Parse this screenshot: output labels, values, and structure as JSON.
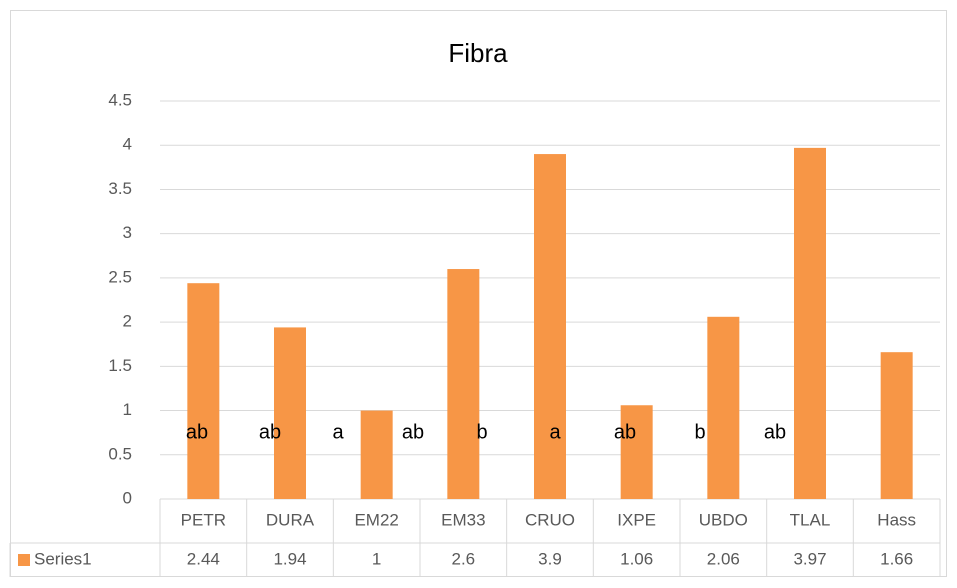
{
  "chart_data": {
    "type": "bar",
    "title": "Fibra",
    "categories": [
      "PETR",
      "DURA",
      "EM22",
      "EM33",
      "CRUO",
      "IXPE",
      "UBDO",
      "TLAL",
      "Hass"
    ],
    "series": [
      {
        "name": "Series1",
        "color": "#f79646",
        "values": [
          2.44,
          1.94,
          1,
          2.6,
          3.9,
          1.06,
          2.06,
          3.97,
          1.66
        ]
      }
    ],
    "ylim": [
      0,
      4.5
    ],
    "yticks": [
      0,
      0.5,
      1,
      1.5,
      2,
      2.5,
      3,
      3.5,
      4,
      4.5
    ],
    "grid": true,
    "data_table": true,
    "annotations": [
      "ab",
      "ab",
      "a",
      "ab",
      "b",
      "a",
      "ab",
      "b",
      "ab"
    ]
  }
}
